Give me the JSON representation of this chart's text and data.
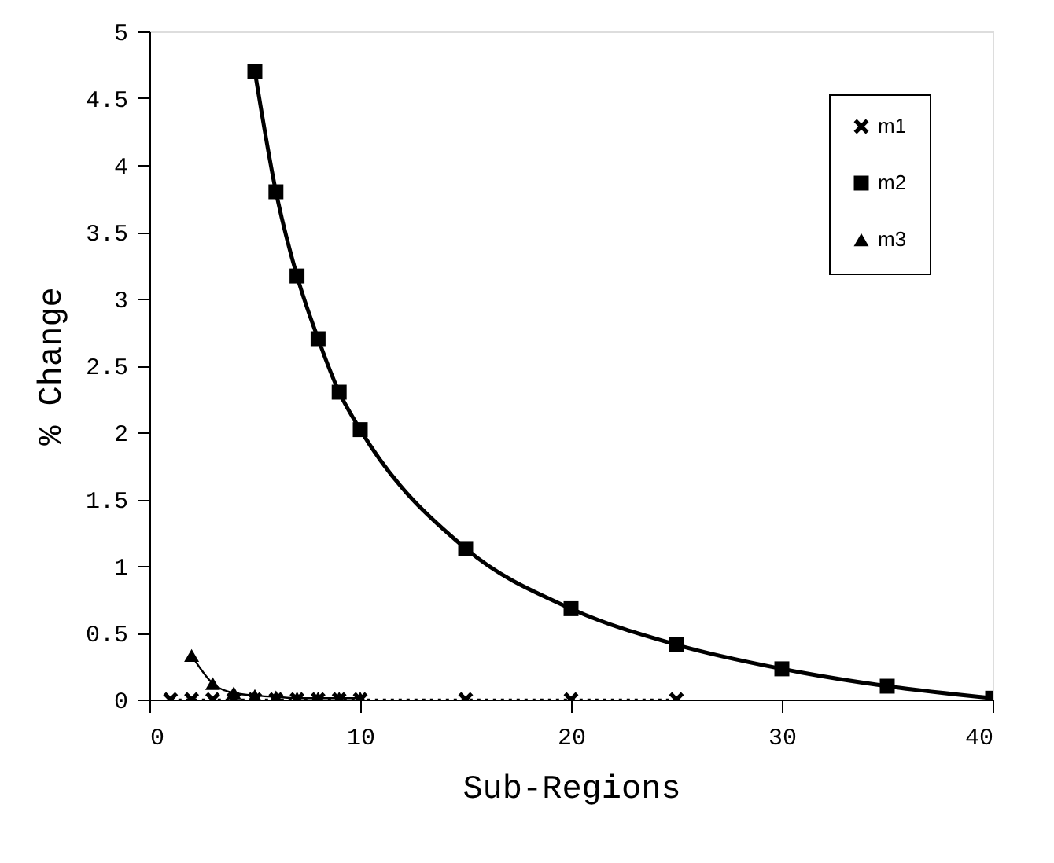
{
  "chart_data": {
    "type": "line",
    "xlabel": "Sub-Regions",
    "ylabel": "% Change",
    "xlim": [
      0,
      40
    ],
    "xticks": [
      0,
      10,
      20,
      30,
      40
    ],
    "ylim": [
      0,
      5
    ],
    "yticks": [
      0,
      0.5,
      1,
      1.5,
      2,
      2.5,
      3,
      3.5,
      4,
      4.5,
      5
    ],
    "grid": false,
    "legend": "top right",
    "series": [
      {
        "name": "m1",
        "color": "#000000",
        "marker": "cross",
        "line_style": "dotted",
        "x": [
          1,
          2,
          3,
          4,
          5,
          6,
          7,
          8,
          9,
          10,
          15,
          20,
          25
        ],
        "values": [
          0,
          0,
          0,
          0,
          0,
          0,
          0,
          0,
          0,
          0,
          0,
          0,
          0
        ]
      },
      {
        "name": "m2",
        "color": "#000000",
        "marker": "square",
        "line_style": "solid",
        "x": [
          5,
          6,
          7,
          8,
          9,
          10,
          15,
          20,
          25,
          30,
          35,
          40
        ],
        "values": [
          4.7,
          3.8,
          3.17,
          2.7,
          2.3,
          2.02,
          1.13,
          0.68,
          0.41,
          0.23,
          0.1,
          0.01
        ]
      },
      {
        "name": "m3",
        "color": "#000000",
        "marker": "triangle",
        "line_style": "solid",
        "x": [
          2,
          3,
          4,
          5,
          6,
          7,
          8,
          9,
          10
        ],
        "values": [
          0.33,
          0.12,
          0.05,
          0.03,
          0.02,
          0.01,
          0.01,
          0.01,
          0.01
        ]
      }
    ]
  }
}
